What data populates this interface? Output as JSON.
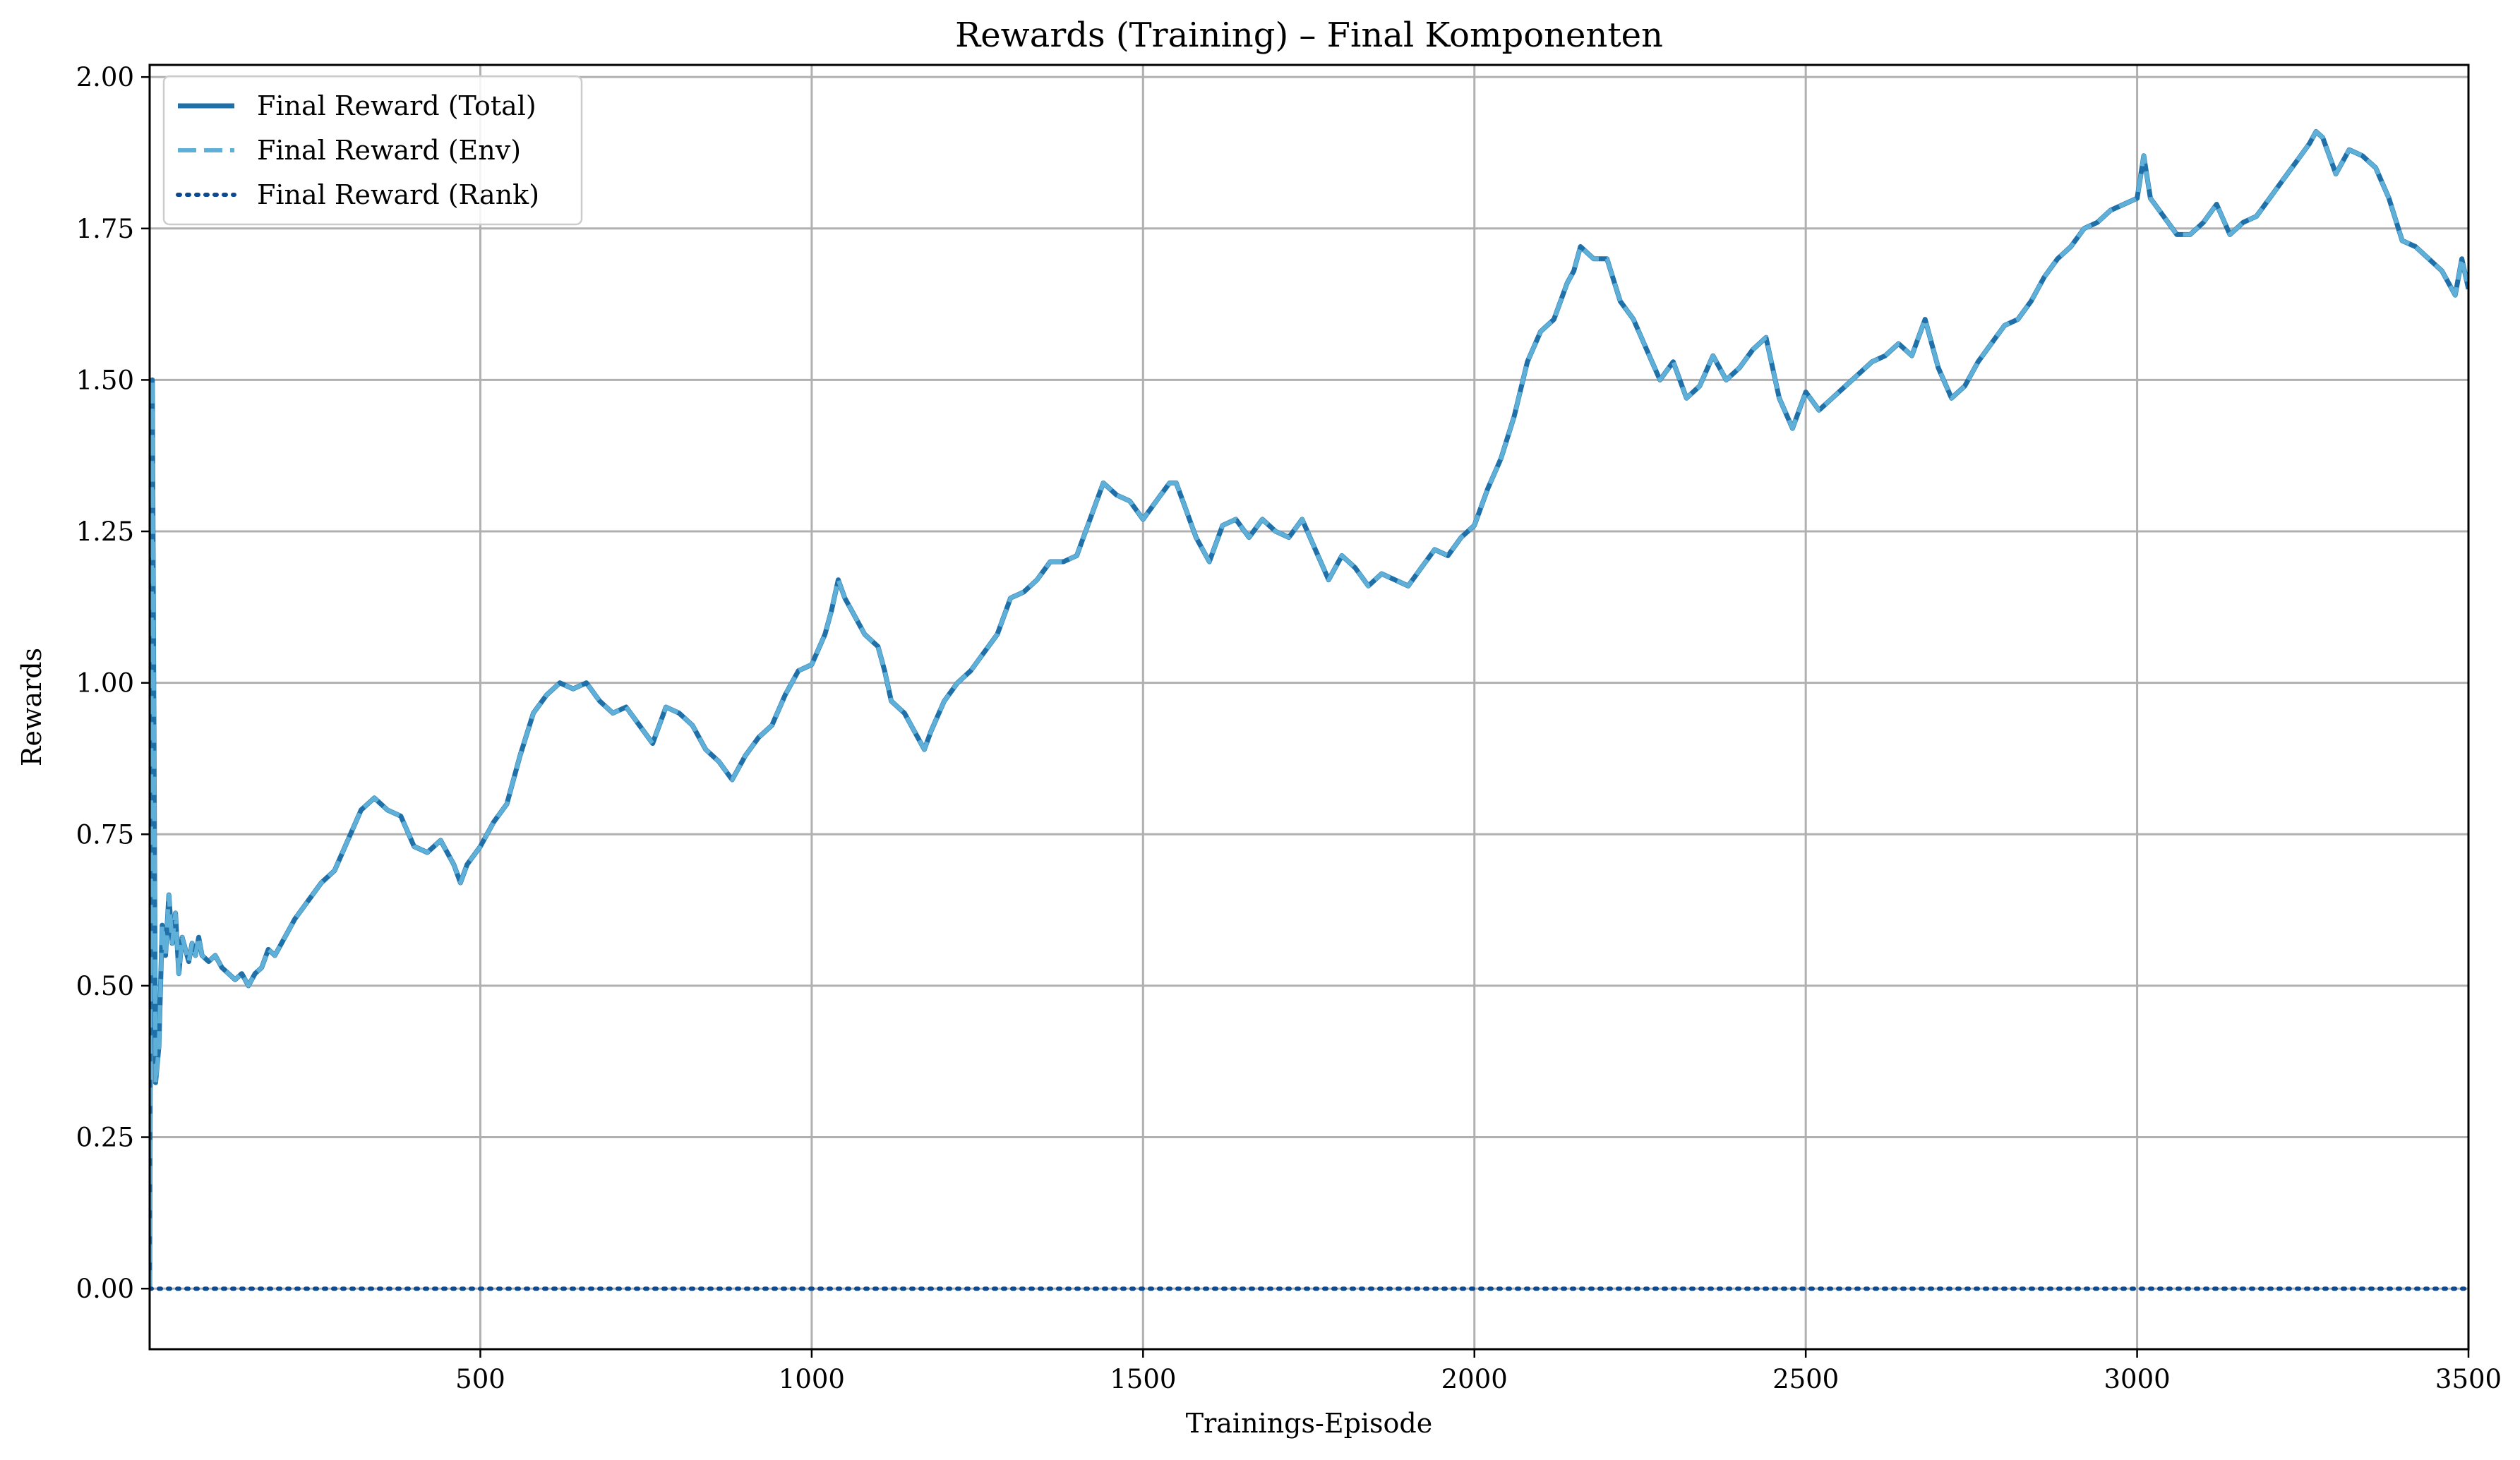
{
  "chart_data": {
    "type": "line",
    "title": "Rewards (Training) – Final Komponenten",
    "xlabel": "Trainings-Episode",
    "ylabel": "Rewards",
    "xlim": [
      1,
      3500
    ],
    "ylim": [
      -0.1,
      2.02
    ],
    "x_ticks": [
      500,
      1000,
      1500,
      2000,
      2500,
      3000,
      3500
    ],
    "y_ticks": [
      0.0,
      0.25,
      0.5,
      0.75,
      1.0,
      1.25,
      1.5,
      1.75,
      2.0
    ],
    "x_tick_labels": [
      "500",
      "1000",
      "1500",
      "2000",
      "2500",
      "3000",
      "3500"
    ],
    "y_tick_labels": [
      "0.00",
      "0.25",
      "0.50",
      "0.75",
      "1.00",
      "1.25",
      "1.50",
      "1.75",
      "2.00"
    ],
    "grid": true,
    "legend_position": "top-left",
    "series": [
      {
        "name": "Final Reward (Total)",
        "color": "#1f6fa8",
        "style": "solid",
        "x": [
          1,
          5,
          10,
          15,
          20,
          25,
          30,
          35,
          40,
          45,
          50,
          55,
          60,
          65,
          70,
          75,
          80,
          90,
          100,
          110,
          120,
          130,
          140,
          150,
          160,
          170,
          180,
          190,
          200,
          220,
          240,
          260,
          280,
          300,
          320,
          340,
          360,
          380,
          400,
          420,
          440,
          460,
          470,
          480,
          500,
          520,
          540,
          560,
          580,
          600,
          620,
          640,
          660,
          680,
          700,
          720,
          740,
          760,
          780,
          800,
          820,
          840,
          860,
          880,
          900,
          920,
          940,
          960,
          980,
          1000,
          1020,
          1030,
          1040,
          1050,
          1060,
          1080,
          1100,
          1110,
          1120,
          1140,
          1160,
          1170,
          1180,
          1200,
          1220,
          1240,
          1260,
          1280,
          1300,
          1320,
          1340,
          1360,
          1380,
          1400,
          1420,
          1430,
          1440,
          1450,
          1460,
          1480,
          1500,
          1520,
          1540,
          1550,
          1560,
          1580,
          1600,
          1620,
          1640,
          1660,
          1680,
          1700,
          1720,
          1740,
          1760,
          1780,
          1800,
          1820,
          1840,
          1860,
          1880,
          1900,
          1920,
          1940,
          1960,
          1980,
          2000,
          2020,
          2040,
          2060,
          2080,
          2100,
          2120,
          2140,
          2150,
          2160,
          2180,
          2200,
          2220,
          2240,
          2260,
          2280,
          2300,
          2320,
          2340,
          2360,
          2380,
          2400,
          2420,
          2440,
          2460,
          2480,
          2500,
          2520,
          2540,
          2560,
          2580,
          2600,
          2620,
          2640,
          2660,
          2680,
          2700,
          2720,
          2740,
          2760,
          2780,
          2800,
          2820,
          2840,
          2860,
          2880,
          2900,
          2920,
          2940,
          2960,
          2980,
          3000,
          3010,
          3020,
          3040,
          3060,
          3080,
          3100,
          3120,
          3140,
          3160,
          3180,
          3200,
          3220,
          3240,
          3260,
          3270,
          3280,
          3300,
          3320,
          3340,
          3360,
          3380,
          3400,
          3420,
          3440,
          3460,
          3480,
          3490,
          3500
        ],
        "y": [
          0.0,
          1.5,
          0.34,
          0.4,
          0.6,
          0.55,
          0.65,
          0.57,
          0.62,
          0.52,
          0.58,
          0.56,
          0.54,
          0.57,
          0.55,
          0.58,
          0.55,
          0.54,
          0.55,
          0.53,
          0.52,
          0.51,
          0.52,
          0.5,
          0.52,
          0.53,
          0.56,
          0.55,
          0.57,
          0.61,
          0.64,
          0.67,
          0.69,
          0.74,
          0.79,
          0.81,
          0.79,
          0.78,
          0.73,
          0.72,
          0.74,
          0.7,
          0.67,
          0.7,
          0.73,
          0.77,
          0.8,
          0.88,
          0.95,
          0.98,
          1.0,
          0.99,
          1.0,
          0.97,
          0.95,
          0.96,
          0.93,
          0.9,
          0.96,
          0.95,
          0.93,
          0.89,
          0.87,
          0.84,
          0.88,
          0.91,
          0.93,
          0.98,
          1.02,
          1.03,
          1.08,
          1.12,
          1.17,
          1.14,
          1.12,
          1.08,
          1.06,
          1.02,
          0.97,
          0.95,
          0.91,
          0.89,
          0.92,
          0.97,
          1.0,
          1.02,
          1.05,
          1.08,
          1.14,
          1.15,
          1.17,
          1.2,
          1.2,
          1.21,
          1.27,
          1.3,
          1.33,
          1.32,
          1.31,
          1.3,
          1.27,
          1.3,
          1.33,
          1.33,
          1.3,
          1.24,
          1.2,
          1.26,
          1.27,
          1.24,
          1.27,
          1.25,
          1.24,
          1.27,
          1.22,
          1.17,
          1.21,
          1.19,
          1.16,
          1.18,
          1.17,
          1.16,
          1.19,
          1.22,
          1.21,
          1.24,
          1.26,
          1.32,
          1.37,
          1.44,
          1.53,
          1.58,
          1.6,
          1.66,
          1.68,
          1.72,
          1.7,
          1.7,
          1.63,
          1.6,
          1.55,
          1.5,
          1.53,
          1.47,
          1.49,
          1.54,
          1.5,
          1.52,
          1.55,
          1.57,
          1.47,
          1.42,
          1.48,
          1.45,
          1.47,
          1.49,
          1.51,
          1.53,
          1.54,
          1.56,
          1.54,
          1.6,
          1.52,
          1.47,
          1.49,
          1.53,
          1.56,
          1.59,
          1.6,
          1.63,
          1.67,
          1.7,
          1.72,
          1.75,
          1.76,
          1.78,
          1.79,
          1.8,
          1.87,
          1.8,
          1.77,
          1.74,
          1.74,
          1.76,
          1.79,
          1.74,
          1.76,
          1.77,
          1.8,
          1.83,
          1.86,
          1.89,
          1.91,
          1.9,
          1.84,
          1.88,
          1.87,
          1.85,
          1.8,
          1.73,
          1.72,
          1.7,
          1.68,
          1.64,
          1.7,
          1.65
        ]
      },
      {
        "name": "Final Reward (Env)",
        "color": "#5fb0d8",
        "style": "dashed",
        "x": [
          1,
          5,
          10,
          15,
          20,
          25,
          30,
          35,
          40,
          45,
          50,
          55,
          60,
          65,
          70,
          75,
          80,
          90,
          100,
          110,
          120,
          130,
          140,
          150,
          160,
          170,
          180,
          190,
          200,
          220,
          240,
          260,
          280,
          300,
          320,
          340,
          360,
          380,
          400,
          420,
          440,
          460,
          470,
          480,
          500,
          520,
          540,
          560,
          580,
          600,
          620,
          640,
          660,
          680,
          700,
          720,
          740,
          760,
          780,
          800,
          820,
          840,
          860,
          880,
          900,
          920,
          940,
          960,
          980,
          1000,
          1020,
          1030,
          1040,
          1050,
          1060,
          1080,
          1100,
          1110,
          1120,
          1140,
          1160,
          1170,
          1180,
          1200,
          1220,
          1240,
          1260,
          1280,
          1300,
          1320,
          1340,
          1360,
          1380,
          1400,
          1420,
          1430,
          1440,
          1450,
          1460,
          1480,
          1500,
          1520,
          1540,
          1550,
          1560,
          1580,
          1600,
          1620,
          1640,
          1660,
          1680,
          1700,
          1720,
          1740,
          1760,
          1780,
          1800,
          1820,
          1840,
          1860,
          1880,
          1900,
          1920,
          1940,
          1960,
          1980,
          2000,
          2020,
          2040,
          2060,
          2080,
          2100,
          2120,
          2140,
          2150,
          2160,
          2180,
          2200,
          2220,
          2240,
          2260,
          2280,
          2300,
          2320,
          2340,
          2360,
          2380,
          2400,
          2420,
          2440,
          2460,
          2480,
          2500,
          2520,
          2540,
          2560,
          2580,
          2600,
          2620,
          2640,
          2660,
          2680,
          2700,
          2720,
          2740,
          2760,
          2780,
          2800,
          2820,
          2840,
          2860,
          2880,
          2900,
          2920,
          2940,
          2960,
          2980,
          3000,
          3010,
          3020,
          3040,
          3060,
          3080,
          3100,
          3120,
          3140,
          3160,
          3180,
          3200,
          3220,
          3240,
          3260,
          3270,
          3280,
          3300,
          3320,
          3340,
          3360,
          3380,
          3400,
          3420,
          3440,
          3460,
          3480,
          3490,
          3500
        ],
        "y": [
          0.0,
          1.5,
          0.34,
          0.4,
          0.6,
          0.55,
          0.65,
          0.57,
          0.62,
          0.52,
          0.58,
          0.56,
          0.54,
          0.57,
          0.55,
          0.58,
          0.55,
          0.54,
          0.55,
          0.53,
          0.52,
          0.51,
          0.52,
          0.5,
          0.52,
          0.53,
          0.56,
          0.55,
          0.57,
          0.61,
          0.64,
          0.67,
          0.69,
          0.74,
          0.79,
          0.81,
          0.79,
          0.78,
          0.73,
          0.72,
          0.74,
          0.7,
          0.67,
          0.7,
          0.73,
          0.77,
          0.8,
          0.88,
          0.95,
          0.98,
          1.0,
          0.99,
          1.0,
          0.97,
          0.95,
          0.96,
          0.93,
          0.9,
          0.96,
          0.95,
          0.93,
          0.89,
          0.87,
          0.84,
          0.88,
          0.91,
          0.93,
          0.98,
          1.02,
          1.03,
          1.08,
          1.12,
          1.17,
          1.14,
          1.12,
          1.08,
          1.06,
          1.02,
          0.97,
          0.95,
          0.91,
          0.89,
          0.92,
          0.97,
          1.0,
          1.02,
          1.05,
          1.08,
          1.14,
          1.15,
          1.17,
          1.2,
          1.2,
          1.21,
          1.27,
          1.3,
          1.33,
          1.32,
          1.31,
          1.3,
          1.27,
          1.3,
          1.33,
          1.33,
          1.3,
          1.24,
          1.2,
          1.26,
          1.27,
          1.24,
          1.27,
          1.25,
          1.24,
          1.27,
          1.22,
          1.17,
          1.21,
          1.19,
          1.16,
          1.18,
          1.17,
          1.16,
          1.19,
          1.22,
          1.21,
          1.24,
          1.26,
          1.32,
          1.37,
          1.44,
          1.53,
          1.58,
          1.6,
          1.66,
          1.68,
          1.72,
          1.7,
          1.7,
          1.63,
          1.6,
          1.55,
          1.5,
          1.53,
          1.47,
          1.49,
          1.54,
          1.5,
          1.52,
          1.55,
          1.57,
          1.47,
          1.42,
          1.48,
          1.45,
          1.47,
          1.49,
          1.51,
          1.53,
          1.54,
          1.56,
          1.54,
          1.6,
          1.52,
          1.47,
          1.49,
          1.53,
          1.56,
          1.59,
          1.6,
          1.63,
          1.67,
          1.7,
          1.72,
          1.75,
          1.76,
          1.78,
          1.79,
          1.8,
          1.87,
          1.8,
          1.77,
          1.74,
          1.74,
          1.76,
          1.79,
          1.74,
          1.76,
          1.77,
          1.8,
          1.83,
          1.86,
          1.89,
          1.91,
          1.9,
          1.84,
          1.88,
          1.87,
          1.85,
          1.8,
          1.73,
          1.72,
          1.7,
          1.68,
          1.64,
          1.7,
          1.65
        ]
      },
      {
        "name": "Final Reward (Rank)",
        "color": "#0d4a8f",
        "style": "dotted",
        "x": [
          1,
          3500
        ],
        "y": [
          0.0,
          0.0
        ]
      }
    ]
  }
}
